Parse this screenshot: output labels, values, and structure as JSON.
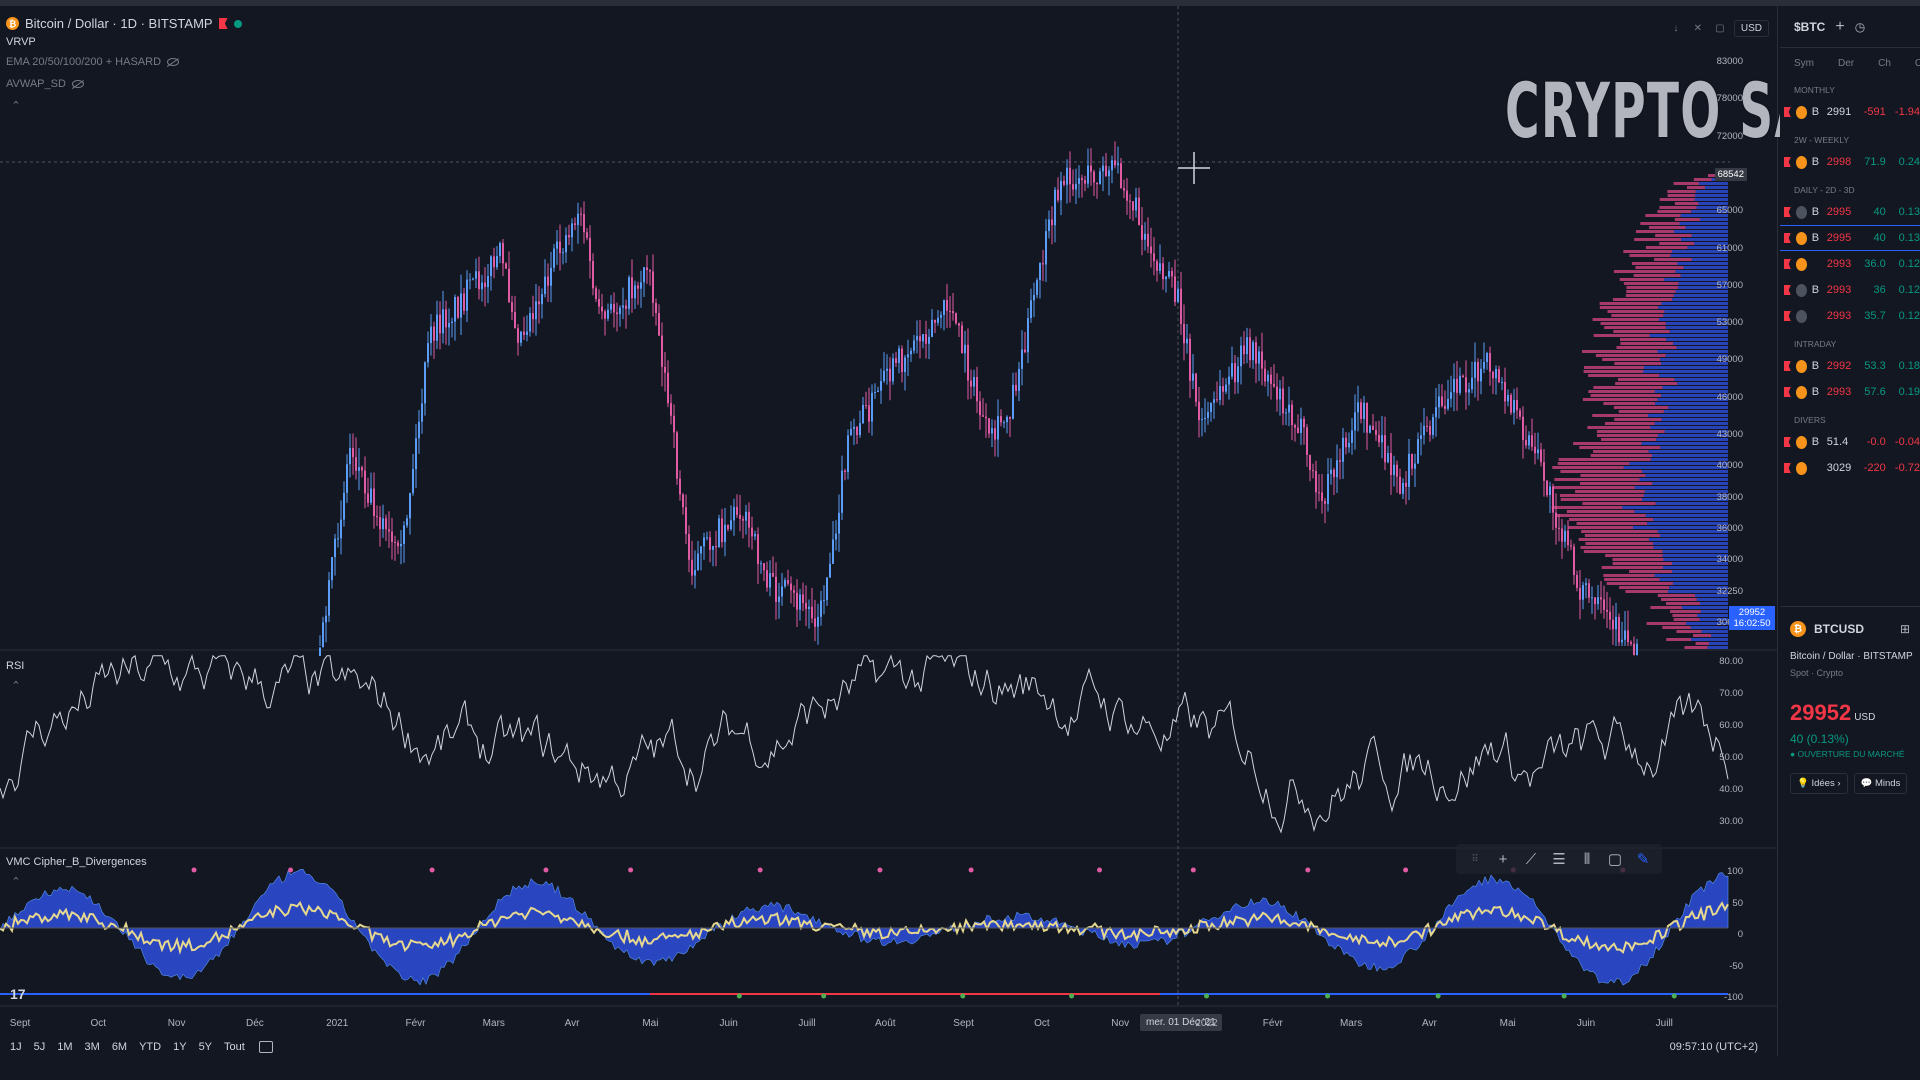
{
  "legend": {
    "main": "Bitcoin / Dollar · 1D · BITSTAMP",
    "vrvp": "VRVP",
    "ema": "EMA 20/50/100/200 + HASARD",
    "avwap": "AVWAP_SD"
  },
  "panes": {
    "rsi_label": "RSI",
    "vmc_label": "VMC Cipher_B_Divergences"
  },
  "watermark": "CRYPTO SAUCE",
  "controls": {
    "currency": "USD"
  },
  "price_axis": {
    "main": [
      "83000",
      "78000",
      "72000",
      "68542",
      "65000",
      "61000",
      "57000",
      "53000",
      "49000",
      "46000",
      "43000",
      "40000",
      "38000",
      "36000",
      "34000",
      "32250",
      "30650"
    ],
    "current_price": "29952",
    "countdown": "16:02:50",
    "rsi": [
      "80.00",
      "70.00",
      "60.00",
      "50.00",
      "40.00",
      "30.00"
    ],
    "vmc": [
      "100",
      "50",
      "0",
      "-50",
      "-100"
    ]
  },
  "time_axis": {
    "labels": [
      "Sept",
      "Oct",
      "Nov",
      "Déc",
      "2021",
      "Févr",
      "Mars",
      "Avr",
      "Mai",
      "Juin",
      "Juill",
      "Août",
      "Sept",
      "Oct",
      "Nov",
      "2022",
      "Févr",
      "Mars",
      "Avr",
      "Mai",
      "Juin",
      "Juill"
    ],
    "crosshair_date": "mer. 01 Déc '21"
  },
  "bottom_bar": {
    "ranges": [
      "1J",
      "5J",
      "1M",
      "3M",
      "6M",
      "YTD",
      "1Y",
      "5Y",
      "Tout"
    ],
    "clock": "09:57:10 (UTC+2)"
  },
  "watchlist": {
    "title": "$BTC",
    "columns": [
      "Sym",
      "Der",
      "Ch",
      "Chg"
    ],
    "sections": [
      {
        "name": "MONTHLY",
        "rows": [
          {
            "sym": "B",
            "last": "2991",
            "chg": "-591",
            "pct": "-1.94",
            "dir": "down"
          }
        ]
      },
      {
        "name": "2W - WEEKLY",
        "rows": [
          {
            "sym": "B",
            "last": "2998",
            "chg": "71.9",
            "pct": "0.24",
            "dir": "up"
          }
        ]
      },
      {
        "name": "DAILY - 2D - 3D",
        "rows": [
          {
            "sym": "B",
            "last": "2995",
            "chg": "40",
            "pct": "0.13",
            "dir": "up",
            "grey": true
          },
          {
            "sym": "B",
            "last": "2995",
            "chg": "40",
            "pct": "0.13",
            "dir": "up",
            "selected": true
          },
          {
            "sym": "",
            "last": "2993",
            "chg": "36.0",
            "pct": "0.12",
            "dir": "up"
          },
          {
            "sym": "B",
            "last": "2993",
            "chg": "36",
            "pct": "0.12",
            "dir": "up",
            "grey": true
          },
          {
            "sym": "",
            "last": "2993",
            "chg": "35.7",
            "pct": "0.12",
            "dir": "up",
            "grey": true
          }
        ]
      },
      {
        "name": "INTRADAY",
        "rows": [
          {
            "sym": "B",
            "last": "2992",
            "chg": "53.3",
            "pct": "0.18",
            "dir": "up"
          },
          {
            "sym": "B",
            "last": "2993",
            "chg": "57.6",
            "pct": "0.19",
            "dir": "up"
          }
        ]
      },
      {
        "name": "DIVERS",
        "rows": [
          {
            "sym": "B",
            "last": "51.4",
            "chg": "-0.0",
            "pct": "-0.04",
            "dir": "down"
          },
          {
            "sym": "",
            "last": "3029",
            "chg": "-220",
            "pct": "-0.72",
            "dir": "down"
          }
        ]
      }
    ]
  },
  "details": {
    "symbol": "BTCUSD",
    "name": "Bitcoin / Dollar · BITSTAMP",
    "type": "Spot · Crypto",
    "price": "29952",
    "currency": "USD",
    "change": "40 (0.13%)",
    "status": "● OUVERTURE DU MARCHÉ",
    "btn_ideas": "Idées",
    "btn_minds": "Minds"
  },
  "colors": {
    "bull": "#089981",
    "bear": "#f23645",
    "accent": "#2962ff",
    "vp_up": "#2b48c9",
    "vp_down": "#c2407a"
  }
}
